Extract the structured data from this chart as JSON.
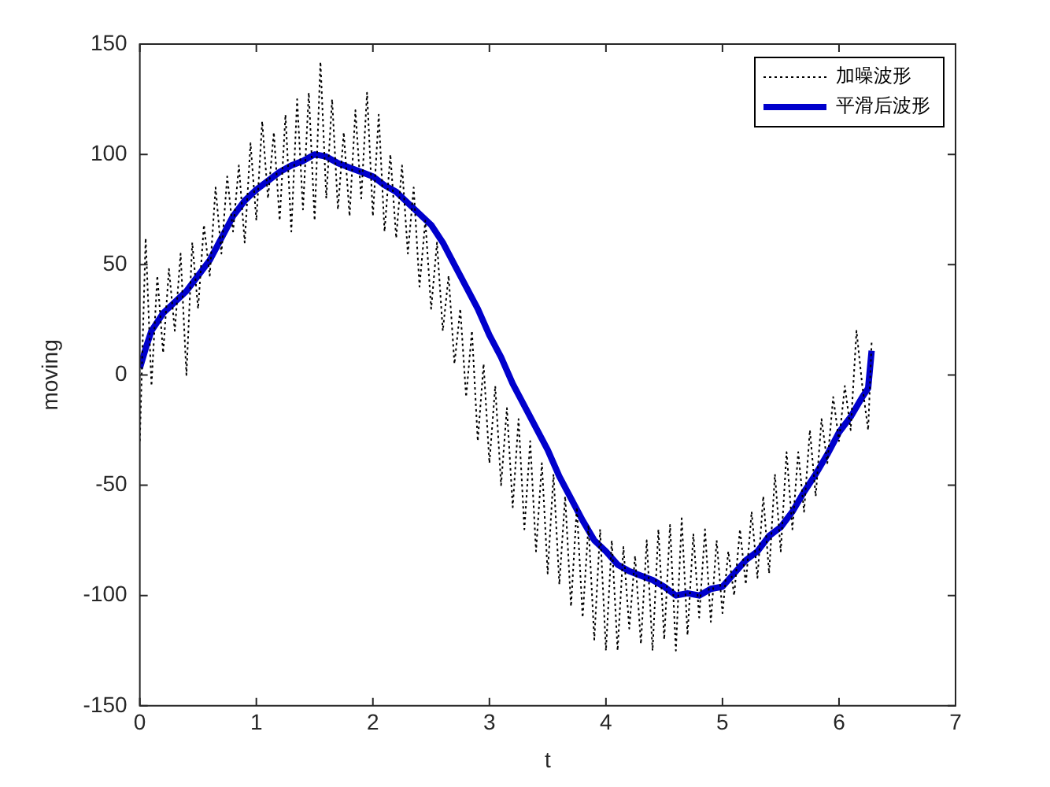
{
  "chart_data": {
    "type": "line",
    "xlabel": "t",
    "ylabel": "moving",
    "xlim": [
      0,
      7
    ],
    "ylim": [
      -150,
      150
    ],
    "xticks": [
      0,
      1,
      2,
      3,
      4,
      5,
      6,
      7
    ],
    "yticks": [
      -150,
      -100,
      -50,
      0,
      50,
      100,
      150
    ],
    "grid": false,
    "legend": "top right",
    "marker": "none",
    "series": [
      {
        "name": "加噪波形",
        "color": "#000000",
        "line_style": "dotted",
        "x": [
          0,
          0.05,
          0.1,
          0.15,
          0.2,
          0.25,
          0.3,
          0.35,
          0.4,
          0.45,
          0.5,
          0.55,
          0.6,
          0.65,
          0.7,
          0.75,
          0.8,
          0.85,
          0.9,
          0.95,
          1.0,
          1.05,
          1.1,
          1.15,
          1.2,
          1.25,
          1.3,
          1.35,
          1.4,
          1.45,
          1.5,
          1.55,
          1.6,
          1.65,
          1.7,
          1.75,
          1.8,
          1.85,
          1.9,
          1.95,
          2.0,
          2.05,
          2.1,
          2.15,
          2.2,
          2.25,
          2.3,
          2.35,
          2.4,
          2.45,
          2.5,
          2.55,
          2.6,
          2.65,
          2.7,
          2.75,
          2.8,
          2.85,
          2.9,
          2.95,
          3.0,
          3.05,
          3.1,
          3.15,
          3.2,
          3.25,
          3.3,
          3.35,
          3.4,
          3.45,
          3.5,
          3.55,
          3.6,
          3.65,
          3.7,
          3.75,
          3.8,
          3.85,
          3.9,
          3.95,
          4.0,
          4.05,
          4.1,
          4.15,
          4.2,
          4.25,
          4.3,
          4.35,
          4.4,
          4.45,
          4.5,
          4.55,
          4.6,
          4.65,
          4.7,
          4.75,
          4.8,
          4.85,
          4.9,
          4.95,
          5.0,
          5.05,
          5.1,
          5.15,
          5.2,
          5.25,
          5.3,
          5.35,
          5.4,
          5.45,
          5.5,
          5.55,
          5.6,
          5.65,
          5.7,
          5.75,
          5.8,
          5.85,
          5.9,
          5.95,
          6.0,
          6.05,
          6.1,
          6.15,
          6.2,
          6.25,
          6.28
        ],
        "values": [
          -30,
          62,
          -5,
          45,
          10,
          48,
          20,
          55,
          0,
          60,
          30,
          68,
          45,
          85,
          55,
          90,
          65,
          95,
          60,
          105,
          70,
          115,
          80,
          110,
          70,
          118,
          65,
          125,
          75,
          128,
          70,
          142,
          80,
          125,
          75,
          110,
          72,
          120,
          80,
          128,
          72,
          118,
          65,
          100,
          62,
          95,
          55,
          85,
          40,
          70,
          30,
          60,
          20,
          45,
          5,
          30,
          -10,
          20,
          -30,
          5,
          -40,
          -5,
          -50,
          -15,
          -60,
          -20,
          -70,
          -30,
          -80,
          -40,
          -90,
          -45,
          -95,
          -55,
          -105,
          -60,
          -110,
          -68,
          -120,
          -70,
          -125,
          -75,
          -125,
          -78,
          -115,
          -82,
          -122,
          -75,
          -125,
          -70,
          -120,
          -68,
          -125,
          -65,
          -118,
          -72,
          -110,
          -70,
          -112,
          -75,
          -108,
          -80,
          -100,
          -70,
          -95,
          -62,
          -92,
          -55,
          -90,
          -45,
          -80,
          -35,
          -70,
          -35,
          -62,
          -25,
          -55,
          -20,
          -40,
          -10,
          -30,
          -5,
          -25,
          20,
          -5,
          -25,
          15
        ]
      },
      {
        "name": "平滑后波形",
        "color": "#0000cc",
        "line_style": "solid",
        "x": [
          0,
          0.05,
          0.1,
          0.2,
          0.3,
          0.4,
          0.5,
          0.6,
          0.7,
          0.8,
          0.9,
          1.0,
          1.1,
          1.2,
          1.3,
          1.4,
          1.5,
          1.6,
          1.7,
          1.8,
          1.9,
          2.0,
          2.1,
          2.2,
          2.3,
          2.4,
          2.5,
          2.6,
          2.7,
          2.8,
          2.9,
          3.0,
          3.1,
          3.2,
          3.3,
          3.4,
          3.5,
          3.6,
          3.7,
          3.8,
          3.9,
          4.0,
          4.1,
          4.2,
          4.3,
          4.4,
          4.5,
          4.6,
          4.7,
          4.8,
          4.9,
          5.0,
          5.1,
          5.2,
          5.3,
          5.4,
          5.5,
          5.6,
          5.7,
          5.8,
          5.9,
          6.0,
          6.1,
          6.2,
          6.25,
          6.28
        ],
        "values": [
          3,
          12,
          20,
          28,
          33,
          38,
          45,
          52,
          62,
          72,
          79,
          84,
          88,
          92,
          95,
          97,
          100,
          99,
          96,
          94,
          92,
          90,
          86,
          83,
          78,
          73,
          68,
          60,
          50,
          40,
          30,
          18,
          8,
          -4,
          -14,
          -24,
          -34,
          -46,
          -56,
          -66,
          -75,
          -80,
          -86,
          -89,
          -91,
          -93,
          -96,
          -100,
          -99,
          -100,
          -97,
          -96,
          -90,
          -84,
          -80,
          -73,
          -69,
          -62,
          -53,
          -45,
          -36,
          -26,
          -19,
          -10,
          -6,
          11
        ]
      }
    ]
  }
}
